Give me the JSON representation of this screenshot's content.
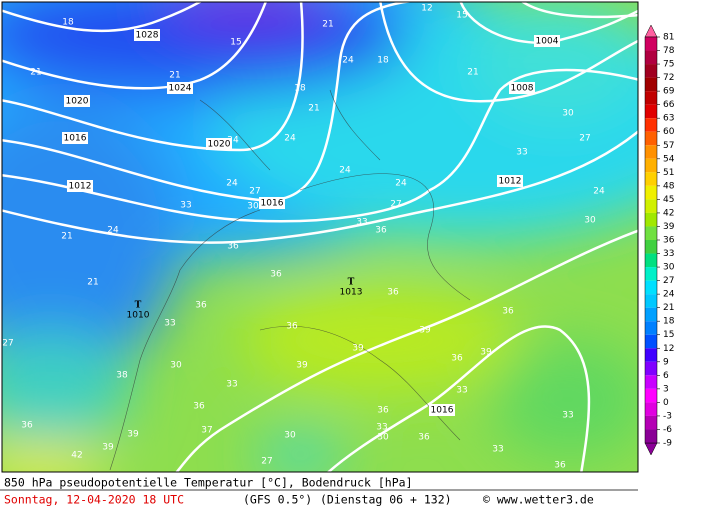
{
  "map": {
    "isobar_labels": [
      "1028",
      "1024",
      "1020",
      "1016",
      "1020",
      "1016",
      "1012",
      "1012",
      "1008",
      "1004",
      "1016"
    ],
    "pressure_centers": [
      {
        "symbol": "T",
        "value": "1013"
      },
      {
        "symbol": "T",
        "value": "1010"
      }
    ],
    "temperature_labels": [
      "18",
      "21",
      "21",
      "24",
      "24",
      "21",
      "15",
      "18",
      "21",
      "24",
      "27",
      "30",
      "24",
      "24",
      "33",
      "33",
      "36",
      "27",
      "24",
      "33",
      "30",
      "27",
      "24",
      "30",
      "21",
      "24",
      "21",
      "36",
      "36",
      "36",
      "33",
      "36",
      "36",
      "39",
      "39",
      "36",
      "39",
      "36",
      "30",
      "33",
      "36",
      "38",
      "36",
      "39",
      "39",
      "42",
      "27",
      "36",
      "33",
      "33",
      "39",
      "36",
      "33",
      "30",
      "30",
      "27",
      "37",
      "33",
      "36",
      "15",
      "21",
      "18",
      "12"
    ]
  },
  "colorbar": {
    "levels": [
      81,
      78,
      75,
      72,
      69,
      66,
      63,
      60,
      57,
      54,
      51,
      48,
      45,
      42,
      39,
      36,
      33,
      30,
      27,
      24,
      21,
      18,
      15,
      12,
      9,
      6,
      3,
      0,
      -3,
      -6,
      -9
    ]
  },
  "footer": {
    "title": "850 hPa pseudopotentielle Temperatur [°C], Bodendruck [hPa]",
    "date": "Sonntag, 12-04-2020  18 UTC",
    "model": "(GFS 0.5°)",
    "run": "(Dienstag 06 + 132)",
    "copyright": "© www.wetter3.de"
  }
}
